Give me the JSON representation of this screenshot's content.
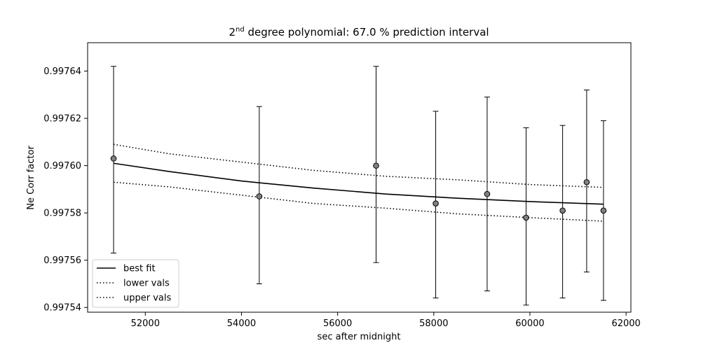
{
  "chart_data": {
    "type": "scatter",
    "title_base": "2",
    "title_sup": "nd",
    "title_rest": " degree polynomial: 67.0 % prediction interval",
    "xlabel": "sec after midnight",
    "ylabel": "Ne Corr factor",
    "xlim": [
      50800,
      62100
    ],
    "ylim": [
      0.997538,
      0.997652
    ],
    "xticks": [
      52000,
      54000,
      56000,
      58000,
      60000,
      62000
    ],
    "xtick_labels": [
      "52000",
      "54000",
      "56000",
      "58000",
      "60000",
      "62000"
    ],
    "yticks": [
      0.99754,
      0.99756,
      0.99758,
      0.9976,
      0.99762,
      0.99764
    ],
    "ytick_labels": [
      "0.99754",
      "0.99756",
      "0.99758",
      "0.99760",
      "0.99762",
      "0.99764"
    ],
    "points": [
      {
        "x": 51340,
        "y": 0.997603,
        "err_low": 0.997563,
        "err_high": 0.997642
      },
      {
        "x": 54370,
        "y": 0.997587,
        "err_low": 0.99755,
        "err_high": 0.997625
      },
      {
        "x": 56800,
        "y": 0.9976,
        "err_low": 0.997559,
        "err_high": 0.997642
      },
      {
        "x": 58040,
        "y": 0.997584,
        "err_low": 0.997544,
        "err_high": 0.997623
      },
      {
        "x": 59110,
        "y": 0.997588,
        "err_low": 0.997547,
        "err_high": 0.997629
      },
      {
        "x": 59920,
        "y": 0.997578,
        "err_low": 0.997541,
        "err_high": 0.997616
      },
      {
        "x": 60680,
        "y": 0.997581,
        "err_low": 0.997544,
        "err_high": 0.997617
      },
      {
        "x": 61180,
        "y": 0.997593,
        "err_low": 0.997555,
        "err_high": 0.997632
      },
      {
        "x": 61530,
        "y": 0.997581,
        "err_low": 0.997543,
        "err_high": 0.997619
      }
    ],
    "series": [
      {
        "name": "best fit",
        "style": "solid",
        "x": [
          51340,
          52500,
          54000,
          55500,
          57000,
          58500,
          60000,
          61530
        ],
        "y": [
          0.997601,
          0.9975975,
          0.9975935,
          0.9975905,
          0.997588,
          0.9975862,
          0.9975848,
          0.9975837
        ]
      },
      {
        "name": "lower vals",
        "style": "dotted",
        "x": [
          51340,
          52500,
          54000,
          55500,
          57000,
          58500,
          60000,
          61530
        ],
        "y": [
          0.997593,
          0.997591,
          0.9975875,
          0.997584,
          0.997582,
          0.9975796,
          0.997578,
          0.9975765
        ]
      },
      {
        "name": "upper vals",
        "style": "dotted",
        "x": [
          51340,
          52500,
          54000,
          55500,
          57000,
          58500,
          60000,
          61530
        ],
        "y": [
          0.997609,
          0.997605,
          0.9976015,
          0.997598,
          0.9975955,
          0.997594,
          0.997592,
          0.9975908
        ]
      }
    ],
    "legend": {
      "position": "lower-left",
      "entries": [
        {
          "label": "best fit",
          "style": "solid"
        },
        {
          "label": "lower vals",
          "style": "dotted"
        },
        {
          "label": "upper vals",
          "style": "dotted"
        }
      ]
    },
    "colors": {
      "line": "#000000",
      "marker_fill": "#808080",
      "marker_edge": "#000000",
      "background": "#ffffff"
    }
  }
}
